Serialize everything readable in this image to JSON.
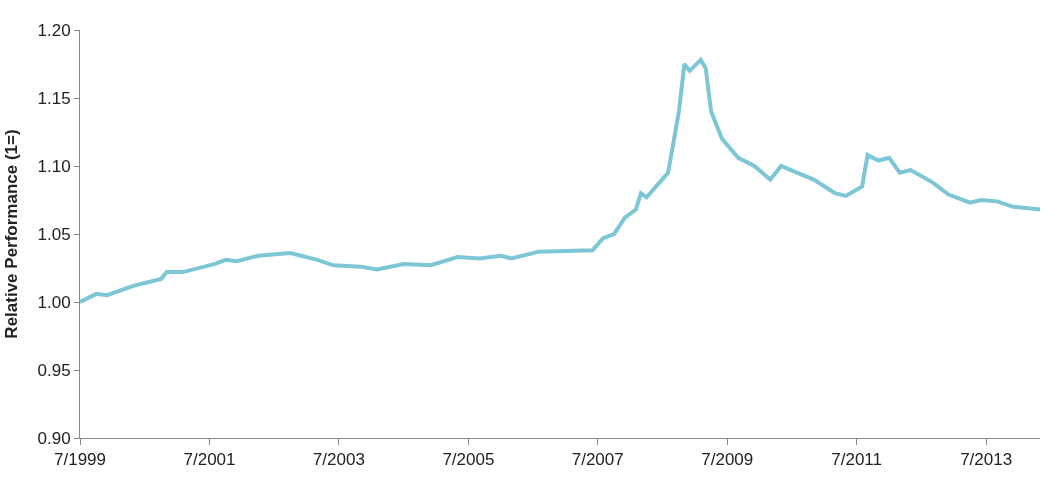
{
  "chart_data": {
    "type": "line",
    "ylabel": "Relative Performance (1=)",
    "x": [
      "1999-07",
      "1999-10",
      "1999-12",
      "2000-05",
      "2000-10",
      "2000-11",
      "2001-02",
      "2001-08",
      "2001-10",
      "2001-12",
      "2002-04",
      "2002-10",
      "2002-12",
      "2003-03",
      "2003-06",
      "2003-11",
      "2004-02",
      "2004-07",
      "2004-12",
      "2005-05",
      "2005-09",
      "2006-01",
      "2006-03",
      "2006-08",
      "2007-06",
      "2007-08",
      "2007-10",
      "2007-12",
      "2008-02",
      "2008-03",
      "2008-04",
      "2008-08",
      "2008-10",
      "2008-11",
      "2008-12",
      "2009-02",
      "2009-03",
      "2009-04",
      "2009-06",
      "2009-09",
      "2009-12",
      "2010-03",
      "2010-05",
      "2010-08",
      "2010-11",
      "2011-03",
      "2011-05",
      "2011-08",
      "2011-09",
      "2011-11",
      "2012-01",
      "2012-03",
      "2012-05",
      "2012-09",
      "2012-12",
      "2013-04",
      "2013-06",
      "2013-09",
      "2013-12",
      "2014-05"
    ],
    "series": [
      {
        "color": "#7cc6d6",
        "values": [
          1.0,
          1.006,
          1.005,
          1.012,
          1.017,
          1.022,
          1.022,
          1.028,
          1.031,
          1.03,
          1.034,
          1.036,
          1.034,
          1.031,
          1.027,
          1.026,
          1.024,
          1.028,
          1.027,
          1.033,
          1.032,
          1.034,
          1.032,
          1.037,
          1.038,
          1.047,
          1.05,
          1.062,
          1.068,
          1.08,
          1.077,
          1.095,
          1.14,
          1.175,
          1.17,
          1.178,
          1.172,
          1.14,
          1.12,
          1.106,
          1.1,
          1.09,
          1.1,
          1.095,
          1.09,
          1.08,
          1.078,
          1.085,
          1.108,
          1.104,
          1.106,
          1.095,
          1.097,
          1.088,
          1.079,
          1.073,
          1.075,
          1.074,
          1.07,
          1.068
        ]
      }
    ],
    "xlim": [
      "1999-07",
      "2014-05"
    ],
    "xticks": [
      {
        "value": "1999-07",
        "label": "7/1999"
      },
      {
        "value": "2001-07",
        "label": "7/2001"
      },
      {
        "value": "2003-07",
        "label": "7/2003"
      },
      {
        "value": "2005-07",
        "label": "7/2005"
      },
      {
        "value": "2007-07",
        "label": "7/2007"
      },
      {
        "value": "2009-07",
        "label": "7/2009"
      },
      {
        "value": "2011-07",
        "label": "7/2011"
      },
      {
        "value": "2013-07",
        "label": "7/2013"
      }
    ],
    "ylim": [
      0.9,
      1.2
    ],
    "yticks": [
      {
        "value": 0.9,
        "label": "0.90"
      },
      {
        "value": 0.95,
        "label": "0.95"
      },
      {
        "value": 1.0,
        "label": "1.00"
      },
      {
        "value": 1.05,
        "label": "1.05"
      },
      {
        "value": 1.1,
        "label": "1.10"
      },
      {
        "value": 1.15,
        "label": "1.15"
      },
      {
        "value": 1.2,
        "label": "1.20"
      }
    ],
    "marker": "none",
    "line_style": "solid"
  }
}
